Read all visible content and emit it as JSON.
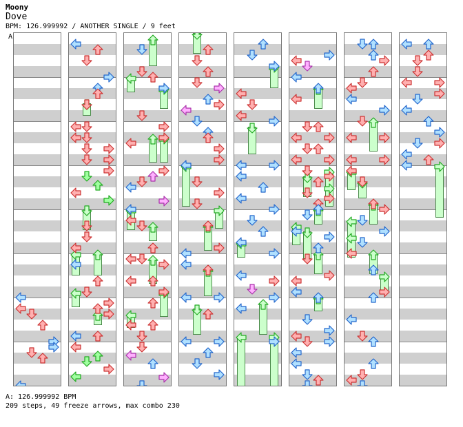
{
  "artist": "Moony",
  "song_title": "Dove",
  "meta_line": "BPM: 126.999992 / ANOTHER SINGLE / 9 feet",
  "bpm_marker": "A",
  "footer_bpm": "A: 126.999992 BPM",
  "footer_stats": "209 steps, 49 freeze arrows, max combo 230",
  "colors": {
    "quarter": "#b0e0ff",
    "eighth": "#ffb0b0",
    "sixteenth": "#ffb0ff",
    "twelfth": "#a0ffa0",
    "freeze_fill": "#ccffcc",
    "stroke_blue": "#2266cc",
    "stroke_red": "#cc3333",
    "stroke_magenta": "#aa33aa",
    "stroke_green": "#22aa22"
  },
  "note_types": {
    "L": "left-arrow",
    "D": "down-arrow",
    "U": "up-arrow",
    "R": "right-arrow"
  },
  "columns": [
    {
      "notes": [
        [
          "L",
          432,
          "quarter"
        ],
        [
          "L",
          448,
          "eighth"
        ],
        [
          "D",
          456,
          "eighth"
        ],
        [
          "U",
          472,
          "eighth"
        ],
        [
          "R",
          496,
          "quarter"
        ],
        [
          "D",
          512,
          "eighth"
        ],
        [
          "R",
          504,
          "quarter"
        ],
        [
          "U",
          520,
          "eighth"
        ],
        [
          "L",
          560,
          "quarter"
        ]
      ],
      "holds": []
    },
    {
      "notes": [
        [
          "L",
          64,
          "quarter"
        ],
        [
          "U",
          72,
          "eighth"
        ],
        [
          "D",
          88,
          "eighth"
        ],
        [
          "R",
          112,
          "quarter"
        ],
        [
          "U",
          128,
          "quarter"
        ],
        [
          "U",
          136,
          "eighth"
        ],
        [
          "D",
          152,
          "eighth"
        ],
        [
          "L",
          184,
          "eighth"
        ],
        [
          "D",
          184,
          "eighth"
        ],
        [
          "L",
          200,
          "eighth"
        ],
        [
          "D",
          200,
          "eighth"
        ],
        [
          "D",
          216,
          "eighth"
        ],
        [
          "R",
          216,
          "eighth"
        ],
        [
          "D",
          232,
          "eighth"
        ],
        [
          "R",
          232,
          "eighth"
        ],
        [
          "R",
          248,
          "eighth"
        ],
        [
          "D",
          256,
          "twelfth"
        ],
        [
          "U",
          269,
          "twelfth"
        ],
        [
          "L",
          280,
          "eighth"
        ],
        [
          "R",
          291,
          "twelfth"
        ],
        [
          "D",
          328,
          "eighth"
        ],
        [
          "D",
          344,
          "eighth"
        ],
        [
          "L",
          360,
          "eighth"
        ],
        [
          "L",
          384,
          "quarter"
        ],
        [
          "U",
          408,
          "eighth"
        ],
        [
          "D",
          424,
          "eighth"
        ],
        [
          "R",
          440,
          "eighth"
        ],
        [
          "U",
          448,
          "eighth"
        ],
        [
          "R",
          456,
          "eighth"
        ],
        [
          "L",
          488,
          "quarter"
        ],
        [
          "U",
          488,
          "eighth"
        ],
        [
          "L",
          504,
          "eighth"
        ],
        [
          "U",
          517,
          "twelfth"
        ],
        [
          "D",
          525,
          "twelfth"
        ],
        [
          "R",
          536,
          "eighth"
        ],
        [
          "L",
          547,
          "twelfth"
        ]
      ],
      "holds": [
        [
          "L",
          368,
          400
        ],
        [
          "U",
          368,
          400
        ],
        [
          "D",
          304,
          334
        ],
        [
          "D",
          150,
          168
        ],
        [
          "L",
          424,
          446
        ],
        [
          "U",
          456,
          472
        ]
      ]
    },
    {
      "notes": [
        [
          "D",
          72,
          "quarter"
        ],
        [
          "D",
          104,
          "eighth"
        ],
        [
          "U",
          112,
          "eighth"
        ],
        [
          "R",
          128,
          "quarter"
        ],
        [
          "D",
          168,
          "eighth"
        ],
        [
          "R",
          184,
          "eighth"
        ],
        [
          "R",
          200,
          "eighth"
        ],
        [
          "L",
          208,
          "eighth"
        ],
        [
          "R",
          248,
          "eighth"
        ],
        [
          "U",
          256,
          "sixteenth"
        ],
        [
          "L",
          272,
          "quarter"
        ],
        [
          "D",
          264,
          "eighth"
        ],
        [
          "R",
          292,
          "sixteenth"
        ],
        [
          "L",
          304,
          "quarter"
        ],
        [
          "L",
          320,
          "eighth"
        ],
        [
          "D",
          328,
          "eighth"
        ],
        [
          "U",
          360,
          "eighth"
        ],
        [
          "L",
          376,
          "eighth"
        ],
        [
          "D",
          376,
          "eighth"
        ],
        [
          "R",
          384,
          "eighth"
        ],
        [
          "L",
          408,
          "eighth"
        ],
        [
          "U",
          408,
          "eighth"
        ],
        [
          "U",
          440,
          "eighth"
        ],
        [
          "R",
          424,
          "eighth"
        ],
        [
          "L",
          472,
          "eighth"
        ],
        [
          "D",
          488,
          "eighth"
        ],
        [
          "U",
          472,
          "eighth"
        ],
        [
          "L",
          516,
          "sixteenth"
        ],
        [
          "D",
          504,
          "eighth"
        ],
        [
          "U",
          528,
          "quarter"
        ],
        [
          "R",
          548,
          "sixteenth"
        ],
        [
          "D",
          560,
          "quarter"
        ]
      ],
      "holds": [
        [
          "U",
          56,
          96
        ],
        [
          "L",
          112,
          134
        ],
        [
          "R",
          128,
          158
        ],
        [
          "U",
          200,
          236
        ],
        [
          "R",
          200,
          236
        ],
        [
          "L",
          304,
          334
        ],
        [
          "U",
          328,
          350
        ],
        [
          "U",
          376,
          412
        ],
        [
          "R",
          424,
          460
        ],
        [
          "L",
          456,
          476
        ]
      ]
    },
    {
      "notes": [
        [
          "U",
          72,
          "eighth"
        ],
        [
          "D",
          88,
          "eighth"
        ],
        [
          "U",
          104,
          "eighth"
        ],
        [
          "D",
          120,
          "eighth"
        ],
        [
          "R",
          128,
          "sixteenth"
        ],
        [
          "U",
          144,
          "quarter"
        ],
        [
          "R",
          152,
          "eighth"
        ],
        [
          "L",
          160,
          "sixteenth"
        ],
        [
          "D",
          176,
          "quarter"
        ],
        [
          "U",
          192,
          "quarter"
        ],
        [
          "U",
          200,
          "eighth"
        ],
        [
          "R",
          216,
          "eighth"
        ],
        [
          "R",
          232,
          "eighth"
        ],
        [
          "L",
          240,
          "quarter"
        ],
        [
          "D",
          264,
          "eighth"
        ],
        [
          "R",
          280,
          "eighth"
        ],
        [
          "D",
          296,
          "eighth"
        ],
        [
          "U",
          328,
          "eighth"
        ],
        [
          "R",
          360,
          "eighth"
        ],
        [
          "L",
          368,
          "quarter"
        ],
        [
          "L",
          384,
          "quarter"
        ],
        [
          "U",
          392,
          "eighth"
        ],
        [
          "L",
          432,
          "quarter"
        ],
        [
          "R",
          432,
          "quarter"
        ],
        [
          "U",
          456,
          "eighth"
        ],
        [
          "L",
          496,
          "quarter"
        ],
        [
          "R",
          496,
          "quarter"
        ],
        [
          "U",
          512,
          "quarter"
        ],
        [
          "D",
          528,
          "quarter"
        ],
        [
          "R",
          544,
          "quarter"
        ]
      ],
      "holds": [
        [
          "D",
          48,
          78
        ],
        [
          "L",
          240,
          300
        ],
        [
          "R",
          304,
          332
        ],
        [
          "U",
          328,
          364
        ],
        [
          "U",
          392,
          430
        ],
        [
          "D",
          448,
          486
        ]
      ]
    },
    {
      "notes": [
        [
          "U",
          64,
          "quarter"
        ],
        [
          "D",
          80,
          "quarter"
        ],
        [
          "R",
          96,
          "quarter"
        ],
        [
          "L",
          136,
          "eighth"
        ],
        [
          "D",
          152,
          "eighth"
        ],
        [
          "L",
          168,
          "eighth"
        ],
        [
          "R",
          176,
          "quarter"
        ],
        [
          "L",
          240,
          "quarter"
        ],
        [
          "R",
          240,
          "quarter"
        ],
        [
          "L",
          256,
          "quarter"
        ],
        [
          "U",
          272,
          "quarter"
        ],
        [
          "L",
          288,
          "quarter"
        ],
        [
          "R",
          304,
          "quarter"
        ],
        [
          "D",
          320,
          "quarter"
        ],
        [
          "U",
          336,
          "quarter"
        ],
        [
          "L",
          352,
          "quarter"
        ],
        [
          "R",
          368,
          "quarter"
        ],
        [
          "L",
          400,
          "quarter"
        ],
        [
          "R",
          408,
          "eighth"
        ],
        [
          "D",
          420,
          "sixteenth"
        ],
        [
          "R",
          432,
          "quarter"
        ],
        [
          "L",
          448,
          "quarter"
        ],
        [
          "R",
          496,
          "quarter"
        ]
      ],
      "holds": [
        [
          "R",
          96,
          128
        ],
        [
          "D",
          184,
          224
        ],
        [
          "L",
          352,
          374
        ],
        [
          "U",
          440,
          486
        ],
        [
          "L",
          488,
          566
        ],
        [
          "R",
          488,
          566
        ]
      ]
    },
    {
      "notes": [
        [
          "L",
          88,
          "eighth"
        ],
        [
          "D",
          96,
          "sixteenth"
        ],
        [
          "R",
          80,
          "quarter"
        ],
        [
          "L",
          112,
          "quarter"
        ],
        [
          "U",
          128,
          "quarter"
        ],
        [
          "L",
          144,
          "eighth"
        ],
        [
          "D",
          184,
          "eighth"
        ],
        [
          "U",
          184,
          "eighth"
        ],
        [
          "L",
          200,
          "eighth"
        ],
        [
          "R",
          200,
          "eighth"
        ],
        [
          "D",
          216,
          "eighth"
        ],
        [
          "U",
          216,
          "eighth"
        ],
        [
          "L",
          232,
          "eighth"
        ],
        [
          "R",
          232,
          "eighth"
        ],
        [
          "D",
          248,
          "eighth"
        ],
        [
          "R",
          256,
          "eighth"
        ],
        [
          "U",
          264,
          "eighth"
        ],
        [
          "D",
          280,
          "eighth"
        ],
        [
          "U",
          296,
          "eighth"
        ],
        [
          "R",
          288,
          "eighth"
        ],
        [
          "D",
          312,
          "quarter"
        ],
        [
          "U",
          304,
          "quarter"
        ],
        [
          "L",
          336,
          "quarter"
        ],
        [
          "R",
          344,
          "quarter"
        ],
        [
          "U",
          360,
          "quarter"
        ],
        [
          "D",
          376,
          "eighth"
        ],
        [
          "L",
          408,
          "eighth"
        ],
        [
          "R",
          400,
          "eighth"
        ],
        [
          "L",
          424,
          "quarter"
        ],
        [
          "U",
          432,
          "quarter"
        ],
        [
          "D",
          464,
          "quarter"
        ],
        [
          "R",
          480,
          "quarter"
        ],
        [
          "L",
          488,
          "eighth"
        ],
        [
          "D",
          496,
          "eighth"
        ],
        [
          "R",
          496,
          "quarter"
        ],
        [
          "L",
          512,
          "quarter"
        ],
        [
          "L",
          528,
          "quarter"
        ],
        [
          "D",
          544,
          "quarter"
        ],
        [
          "U",
          552,
          "eighth"
        ],
        [
          "D",
          560,
          "quarter"
        ]
      ],
      "holds": [
        [
          "U",
          128,
          158
        ],
        [
          "D",
          256,
          286
        ],
        [
          "R",
          248,
          288
        ],
        [
          "R",
          272,
          300
        ],
        [
          "U",
          304,
          326
        ],
        [
          "L",
          328,
          356
        ],
        [
          "D",
          336,
          376
        ],
        [
          "U",
          368,
          398
        ],
        [
          "U",
          432,
          452
        ]
      ]
    },
    {
      "notes": [
        [
          "D",
          64,
          "quarter"
        ],
        [
          "U",
          64,
          "quarter"
        ],
        [
          "U",
          80,
          "quarter"
        ],
        [
          "R",
          88,
          "eighth"
        ],
        [
          "U",
          104,
          "eighth"
        ],
        [
          "L",
          128,
          "eighth"
        ],
        [
          "D",
          120,
          "eighth"
        ],
        [
          "L",
          144,
          "quarter"
        ],
        [
          "R",
          160,
          "quarter"
        ],
        [
          "D",
          176,
          "eighth"
        ],
        [
          "L",
          200,
          "eighth"
        ],
        [
          "R",
          200,
          "eighth"
        ],
        [
          "L",
          232,
          "eighth"
        ],
        [
          "R",
          232,
          "eighth"
        ],
        [
          "L",
          248,
          "eighth"
        ],
        [
          "D",
          264,
          "eighth"
        ],
        [
          "U",
          296,
          "eighth"
        ],
        [
          "R",
          304,
          "eighth"
        ],
        [
          "D",
          320,
          "quarter"
        ],
        [
          "R",
          336,
          "quarter"
        ],
        [
          "D",
          352,
          "quarter"
        ],
        [
          "L",
          368,
          "eighth"
        ],
        [
          "U",
          392,
          "quarter"
        ],
        [
          "R",
          424,
          "eighth"
        ],
        [
          "U",
          432,
          "quarter"
        ],
        [
          "L",
          464,
          "quarter"
        ],
        [
          "D",
          488,
          "eighth"
        ],
        [
          "U",
          496,
          "quarter"
        ],
        [
          "U",
          528,
          "quarter"
        ],
        [
          "D",
          544,
          "eighth"
        ],
        [
          "L",
          552,
          "eighth"
        ],
        [
          "D",
          560,
          "quarter"
        ]
      ],
      "holds": [
        [
          "U",
          176,
          220
        ],
        [
          "L",
          248,
          276
        ],
        [
          "D",
          264,
          288
        ],
        [
          "U",
          296,
          326
        ],
        [
          "L",
          320,
          348
        ],
        [
          "L",
          344,
          374
        ],
        [
          "U",
          368,
          398
        ],
        [
          "R",
          400,
          422
        ]
      ]
    },
    {
      "notes": [
        [
          "L",
          64,
          "quarter"
        ],
        [
          "U",
          64,
          "quarter"
        ],
        [
          "U",
          80,
          "eighth"
        ],
        [
          "D",
          88,
          "eighth"
        ],
        [
          "D",
          104,
          "eighth"
        ],
        [
          "L",
          120,
          "eighth"
        ],
        [
          "R",
          120,
          "eighth"
        ],
        [
          "R",
          136,
          "eighth"
        ],
        [
          "D",
          144,
          "quarter"
        ],
        [
          "L",
          160,
          "quarter"
        ],
        [
          "U",
          176,
          "quarter"
        ],
        [
          "R",
          192,
          "quarter"
        ],
        [
          "R",
          208,
          "eighth"
        ],
        [
          "D",
          208,
          "quarter"
        ],
        [
          "L",
          224,
          "quarter"
        ],
        [
          "L",
          240,
          "quarter"
        ],
        [
          "U",
          232,
          "eighth"
        ]
      ],
      "holds": [
        [
          "R",
          240,
          316
        ]
      ]
    }
  ]
}
